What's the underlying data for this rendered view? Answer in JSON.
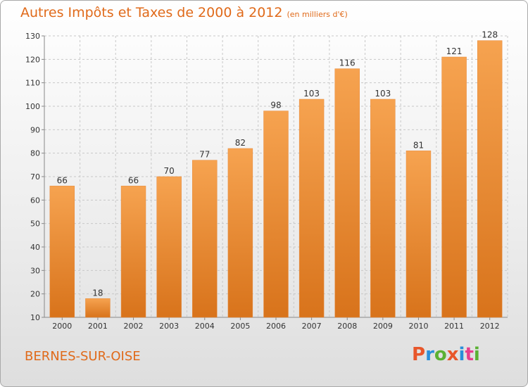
{
  "title": "Autres Impôts et Taxes de 2000 à 2012",
  "unit_label": "(en milliers d'€)",
  "place": "BERNES-SUR-OISE",
  "logo_text": "Proxiti",
  "colors": {
    "title": "#e06a1a",
    "bar_light": "#f5a14f",
    "bar_dark": "#d9761d",
    "grid": "#c8c8c8"
  },
  "chart_data": {
    "type": "bar",
    "title": "Autres Impôts et Taxes de 2000 à 2012",
    "xlabel": "",
    "ylabel": "",
    "categories": [
      "2000",
      "2001",
      "2002",
      "2003",
      "2004",
      "2005",
      "2006",
      "2007",
      "2008",
      "2009",
      "2010",
      "2011",
      "2012"
    ],
    "values": [
      66,
      18,
      66,
      70,
      77,
      82,
      98,
      103,
      116,
      103,
      81,
      121,
      128
    ],
    "ylim": [
      10,
      130
    ],
    "yticks": [
      10,
      20,
      30,
      40,
      50,
      60,
      70,
      80,
      90,
      100,
      110,
      120,
      130
    ],
    "grid": true
  }
}
